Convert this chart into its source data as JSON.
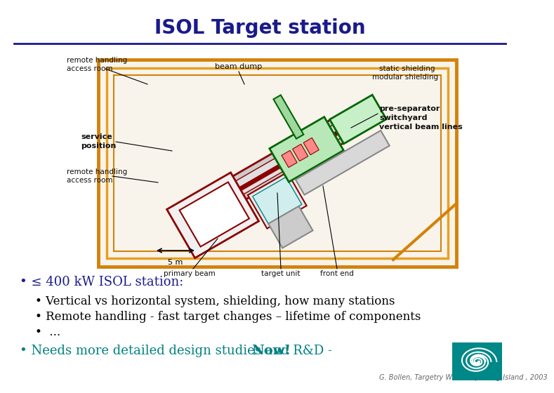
{
  "title": "ISOL Target station",
  "title_color": "#1a1a8c",
  "title_fontsize": 20,
  "title_fontweight": "bold",
  "bg_color": "#ffffff",
  "separator_color": "#1a1a8c",
  "bullet1_text": "• ≤ 400 kW ISOL station:",
  "bullet1_color": "#1a1a8c",
  "bullet1_fontsize": 13,
  "bullet2a": "• Vertical vs horizontal system, shielding, how many stations",
  "bullet2b": "• Remote handling - fast target changes – lifetime of components",
  "bullet2c": "•  ...",
  "bullet2_color": "#000000",
  "bullet2_fontsize": 12,
  "bullet3_pre": "• Needs more detailed design studies and R&D -  ",
  "bullet3_now": "Now!",
  "bullet3_color": "#008080",
  "bullet3_fontsize": 13,
  "footer_text": "G. Bollen, Targetry Workshop, Long Island , 2003",
  "footer_color": "#666666",
  "footer_fontsize": 7,
  "orange": "#d4820a",
  "orange_light": "#e8a020",
  "dark_red": "#8b0000",
  "green_dark": "#006600",
  "green_light": "#90ee90",
  "grey": "#aaaaaa",
  "diagram_bg": "#f8f4ec"
}
